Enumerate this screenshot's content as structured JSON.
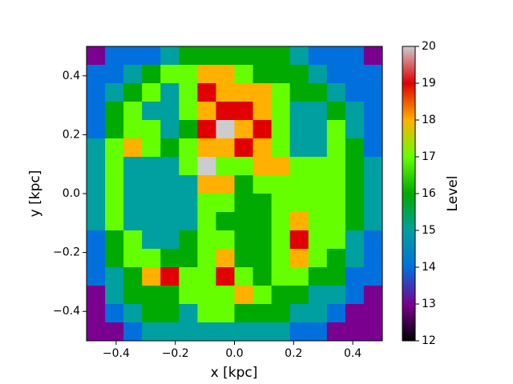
{
  "chart_data": {
    "type": "heatmap",
    "x_label": "x [kpc]",
    "y_label": "y [kpc]",
    "xlim": [
      -0.5,
      0.5
    ],
    "ylim": [
      -0.5,
      0.5
    ],
    "xticks": [
      {
        "value": -0.4,
        "label": "−0.4"
      },
      {
        "value": -0.2,
        "label": "−0.2"
      },
      {
        "value": 0,
        "label": "0.0"
      },
      0.2,
      0.4
    ],
    "yticks": [
      {
        "value": -0.4,
        "label": "−0.4"
      },
      {
        "value": -0.2,
        "label": "−0.2"
      },
      {
        "value": 0,
        "label": "0.0"
      },
      0.2,
      0.4
    ],
    "colorbar": {
      "label": "Level",
      "lim": [
        12,
        20
      ],
      "ticks": [
        12,
        13,
        14,
        15,
        16,
        17,
        18,
        19,
        20
      ]
    },
    "colormap": [
      "#000000",
      "#7a0090",
      "#0070dd",
      "#00a0a0",
      "#00aa00",
      "#66ff00",
      "#ffb000",
      "#e00000",
      "#cccccc"
    ],
    "z": [
      [
        13,
        14,
        14,
        14,
        15,
        16,
        16,
        16,
        16,
        16,
        16,
        15,
        14,
        14,
        14,
        13
      ],
      [
        14,
        14,
        15,
        16,
        17,
        17,
        18,
        18,
        17,
        16,
        16,
        16,
        15,
        14,
        14,
        14
      ],
      [
        14,
        15,
        16,
        17,
        15,
        17,
        19,
        18,
        18,
        18,
        17,
        16,
        16,
        15,
        14,
        14
      ],
      [
        14,
        16,
        17,
        15,
        15,
        17,
        18,
        19,
        19,
        18,
        17,
        15,
        15,
        16,
        15,
        14
      ],
      [
        14,
        16,
        17,
        17,
        15,
        16,
        19,
        20,
        18,
        19,
        17,
        15,
        15,
        17,
        15,
        14
      ],
      [
        15,
        17,
        18,
        17,
        16,
        17,
        18,
        18,
        19,
        18,
        17,
        15,
        15,
        17,
        16,
        14
      ],
      [
        15,
        17,
        15,
        15,
        15,
        17,
        20,
        17,
        17,
        18,
        18,
        17,
        17,
        17,
        16,
        15
      ],
      [
        15,
        17,
        15,
        15,
        15,
        15,
        18,
        18,
        16,
        17,
        17,
        17,
        17,
        17,
        16,
        15
      ],
      [
        15,
        17,
        15,
        15,
        15,
        15,
        17,
        17,
        16,
        16,
        17,
        17,
        17,
        17,
        16,
        15
      ],
      [
        15,
        17,
        15,
        15,
        15,
        15,
        17,
        16,
        16,
        16,
        17,
        18,
        17,
        17,
        16,
        15
      ],
      [
        14,
        16,
        17,
        15,
        15,
        16,
        17,
        17,
        16,
        16,
        17,
        19,
        17,
        17,
        15,
        14
      ],
      [
        14,
        16,
        17,
        17,
        16,
        16,
        17,
        18,
        16,
        16,
        17,
        18,
        17,
        16,
        15,
        14
      ],
      [
        14,
        15,
        16,
        18,
        19,
        17,
        17,
        19,
        17,
        16,
        17,
        17,
        16,
        16,
        14,
        14
      ],
      [
        13,
        15,
        16,
        16,
        16,
        17,
        17,
        17,
        18,
        17,
        16,
        16,
        15,
        15,
        14,
        13
      ],
      [
        13,
        14,
        15,
        16,
        16,
        15,
        17,
        17,
        16,
        16,
        16,
        15,
        15,
        14,
        13,
        13
      ],
      [
        13,
        13,
        14,
        15,
        15,
        15,
        15,
        15,
        15,
        15,
        15,
        14,
        14,
        13,
        13,
        13
      ]
    ]
  }
}
